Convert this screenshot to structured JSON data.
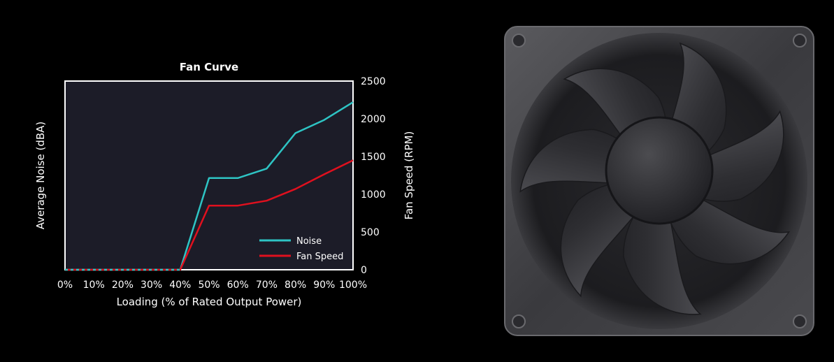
{
  "chart_data": {
    "type": "line",
    "title": "Fan Curve",
    "xlabel": "Loading (% of Rated Output Power)",
    "ylabel_left": "Average Noise (dBA)",
    "ylabel_right": "Fan Speed (RPM)",
    "categories": [
      "0%",
      "10%",
      "20%",
      "30%",
      "40%",
      "50%",
      "60%",
      "70%",
      "80%",
      "90%",
      "100%"
    ],
    "y_right_ticks": [
      "0",
      "500",
      "1000",
      "1500",
      "2000",
      "2500"
    ],
    "ylim_right": [
      0,
      2500
    ],
    "series": [
      {
        "name": "Noise",
        "color": "#2ec4c4",
        "values": [
          0,
          0,
          0,
          0,
          0,
          1215,
          1215,
          1340,
          1810,
          1985,
          2220
        ]
      },
      {
        "name": "Fan Speed",
        "color": "#e0101e",
        "values": [
          0,
          0,
          0,
          0,
          0,
          850,
          850,
          915,
          1070,
          1265,
          1450
        ]
      }
    ],
    "legend_position": "bottom-right",
    "plot_background": "#1c1c28",
    "grid": false
  }
}
